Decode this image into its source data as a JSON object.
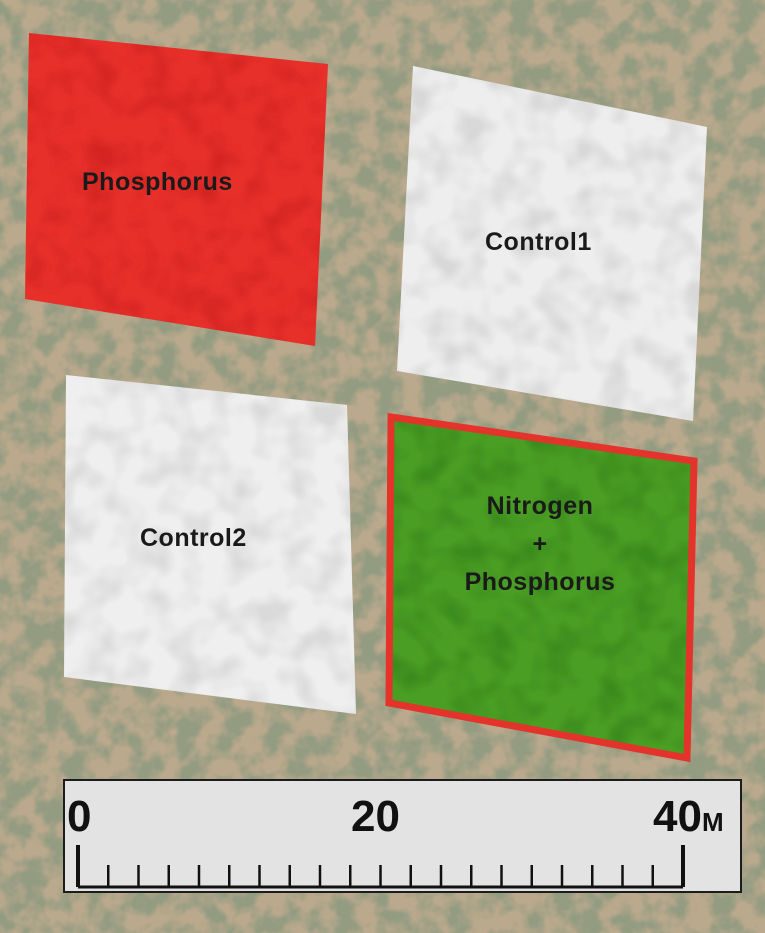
{
  "map": {
    "plots": [
      {
        "id": "phosphorus",
        "label": "Phosphorus",
        "color": "#e8302b",
        "texture": "#c81e1a"
      },
      {
        "id": "control1",
        "label": "Control1",
        "color": "#eeeeee",
        "texture": "#c9cbc9"
      },
      {
        "id": "control2",
        "label": "Control2",
        "color": "#efefef",
        "texture": "#cbcdcb"
      },
      {
        "id": "nitrogen-phosphorus",
        "label_lines": [
          "Nitrogen",
          "+",
          "Phosphorus"
        ],
        "color": "#4a9e24",
        "texture": "#2f7f18",
        "border": "#e3332b"
      }
    ],
    "scale_bar": {
      "labels": [
        "0",
        "20",
        "40"
      ],
      "unit": "M",
      "range": [
        0,
        40
      ]
    },
    "colors": {
      "ground": "#b9a88c",
      "vegetation": "#4f5a3e"
    }
  }
}
